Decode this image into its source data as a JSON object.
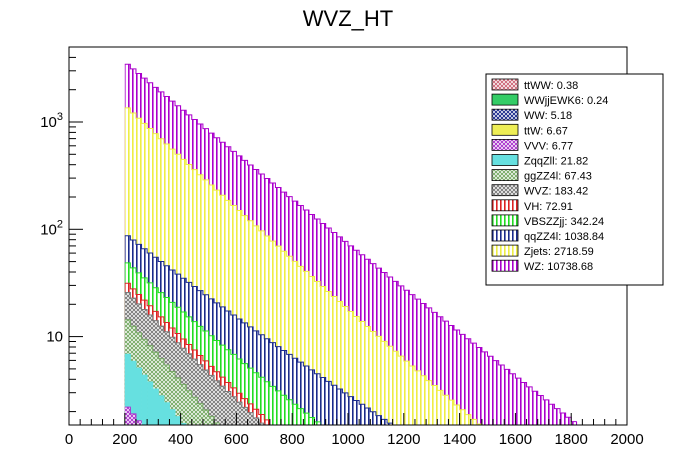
{
  "chart_data": {
    "type": "bar",
    "subtype": "stacked-histogram",
    "title": "WVZ_HT",
    "xlabel": "",
    "ylabel": "",
    "x_range": [
      0,
      2000
    ],
    "y_scale": "log",
    "y_range": [
      1.5,
      5000
    ],
    "x_ticks": [
      0,
      200,
      400,
      600,
      800,
      1000,
      1200,
      1400,
      1600,
      1800,
      2000
    ],
    "x_tick_labels": [
      "0",
      "200",
      "400",
      "600",
      "800",
      "1000",
      "1200",
      "1400",
      "1600",
      "1800",
      "2000"
    ],
    "y_ticks": [
      {
        "value": 10,
        "label": "10",
        "sup": ""
      },
      {
        "value": 100,
        "label": "10",
        "sup": "2"
      },
      {
        "value": 1000,
        "label": "10",
        "sup": "3"
      }
    ],
    "bins": {
      "start": 200,
      "end": 2000,
      "width": 20
    },
    "legend_position": "top-right",
    "series": [
      {
        "name": "ttWW",
        "legend": "ttWW: 0.38",
        "total": 0.38,
        "color": "#cc6677",
        "pattern": "cross",
        "start": 0.17,
        "slope": 0.0085
      },
      {
        "name": "WWjjEWK6",
        "legend": "WWjjEWK6: 0.24",
        "total": 0.24,
        "color": "#33cc66",
        "pattern": "solid",
        "start": 0.1,
        "slope": 0.008
      },
      {
        "name": "WW",
        "legend": "WW: 5.18",
        "total": 5.18,
        "color": "#1a2a8c",
        "pattern": "cross",
        "start": 0.5,
        "slope": 0.0075
      },
      {
        "name": "ttW",
        "legend": "ttW: 6.67",
        "total": 6.67,
        "color": "#eeee55",
        "pattern": "solid",
        "start": 0.3,
        "slope": 0.0075
      },
      {
        "name": "VVV",
        "legend": "VVV: 6.77",
        "total": 6.77,
        "color": "#aa33cc",
        "pattern": "cross",
        "start": 1.3,
        "slope": 0.007
      },
      {
        "name": "ZqqZll",
        "legend": "ZqqZll: 21.82",
        "total": 21.82,
        "color": "#66e0e0",
        "pattern": "solid",
        "start": 5.0,
        "slope": 0.0075
      },
      {
        "name": "ggZZ4l",
        "legend": "ggZZ4l: 67.43",
        "total": 67.43,
        "color": "#77aa66",
        "pattern": "cross",
        "start": 8.0,
        "slope": 0.0065
      },
      {
        "name": "WVZ",
        "legend": "WVZ: 183.42",
        "total": 183.42,
        "color": "#7a7a7a",
        "pattern": "cross",
        "start": 12.0,
        "slope": 0.005
      },
      {
        "name": "VH",
        "legend": "VH: 72.91",
        "total": 72.91,
        "color": "#dd2222",
        "pattern": "vertical",
        "start": 6.0,
        "slope": 0.006
      },
      {
        "name": "VBSZZjj",
        "legend": "VBSZZjj: 342.24",
        "total": 342.24,
        "color": "#22dd22",
        "pattern": "vertical",
        "start": 18.0,
        "slope": 0.0042
      },
      {
        "name": "qqZZ4l",
        "legend": "qqZZ4l: 1038.84",
        "total": 1038.84,
        "color": "#1a2a8c",
        "pattern": "vertical",
        "start": 40.0,
        "slope": 0.0038
      },
      {
        "name": "Zjets",
        "legend": "Zjets: 2718.59",
        "total": 2718.59,
        "color": "#eeee44",
        "pattern": "vertical",
        "start": 1340.0,
        "slope": 0.0056
      },
      {
        "name": "WZ",
        "legend": "WZ: 10738.68",
        "total": 10738.68,
        "color": "#aa00cc",
        "pattern": "vertical",
        "start": 2200.0,
        "slope": 0.0046
      }
    ]
  }
}
